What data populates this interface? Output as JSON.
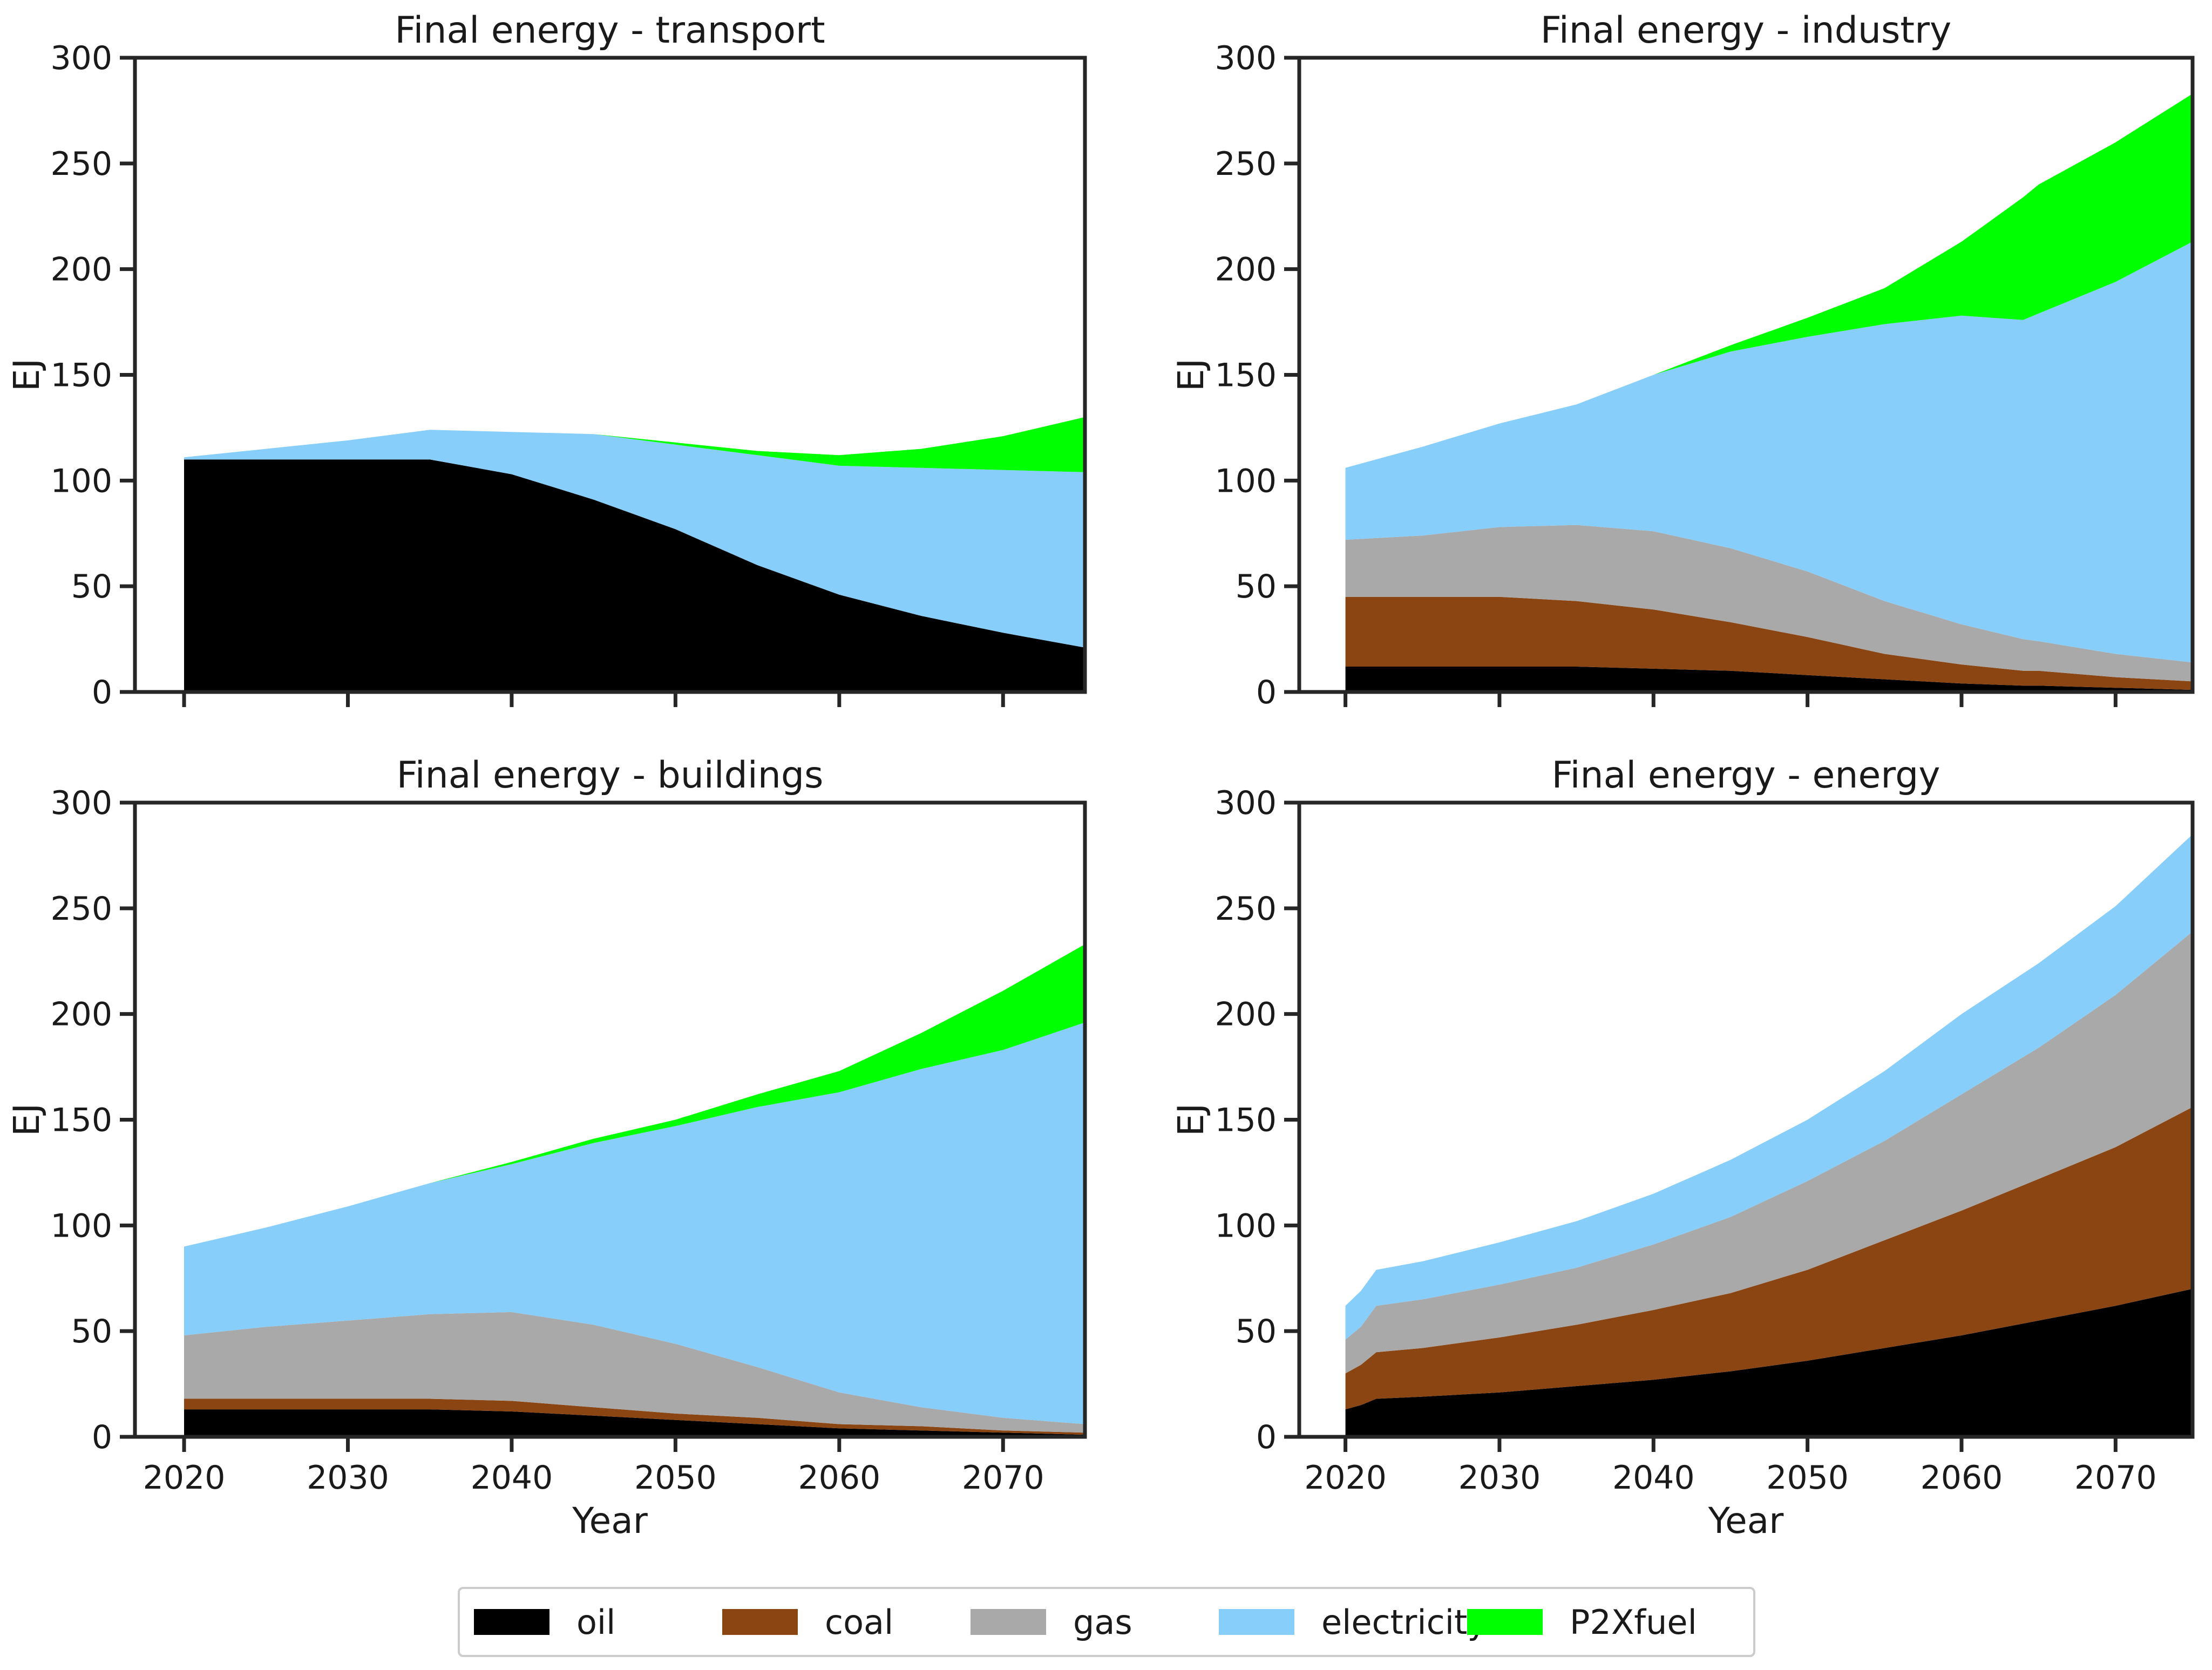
{
  "figure": {
    "legend": {
      "placement": "bottom-center",
      "entries": [
        {
          "key": "oil",
          "label": "oil",
          "color": "#000000"
        },
        {
          "key": "coal",
          "label": "coal",
          "color": "#8B4513"
        },
        {
          "key": "gas",
          "label": "gas",
          "color": "#A9A9A9"
        },
        {
          "key": "electricity",
          "label": "electricity",
          "color": "#87CEFA"
        },
        {
          "key": "P2Xfuel",
          "label": "P2Xfuel",
          "color": "#00FF00"
        }
      ]
    }
  },
  "chart_data": [
    {
      "type": "area",
      "stacked": true,
      "title": "Final energy - transport",
      "xlabel": "",
      "ylabel": "EJ",
      "xlim": [
        2017,
        2075
      ],
      "ylim": [
        0,
        300
      ],
      "xticks": [
        2020,
        2030,
        2040,
        2050,
        2060,
        2070
      ],
      "yticks": [
        0,
        50,
        100,
        150,
        200,
        250,
        300
      ],
      "show_xticklabels": false,
      "x": [
        2020,
        2025,
        2030,
        2035,
        2040,
        2045,
        2050,
        2055,
        2060,
        2065,
        2070,
        2075
      ],
      "series": [
        {
          "name": "oil",
          "values": [
            110,
            110,
            110,
            110,
            103,
            91,
            77,
            60,
            46,
            36,
            28,
            21
          ]
        },
        {
          "name": "coal",
          "values": [
            0,
            0,
            0,
            0,
            0,
            0,
            0,
            0,
            0,
            0,
            0,
            0
          ]
        },
        {
          "name": "gas",
          "values": [
            0,
            0,
            0,
            0,
            0,
            0,
            0,
            0,
            0,
            0,
            0,
            0
          ]
        },
        {
          "name": "electricity",
          "values": [
            1,
            5,
            9,
            14,
            20,
            31,
            40,
            52,
            61,
            70,
            77,
            83
          ]
        },
        {
          "name": "P2Xfuel",
          "values": [
            0,
            0,
            0,
            0,
            0,
            0,
            1,
            2,
            5,
            9,
            16,
            26
          ]
        }
      ]
    },
    {
      "type": "area",
      "stacked": true,
      "title": "Final energy - industry",
      "xlabel": "",
      "ylabel": "EJ",
      "xlim": [
        2017,
        2075
      ],
      "ylim": [
        0,
        300
      ],
      "xticks": [
        2020,
        2030,
        2040,
        2050,
        2060,
        2070
      ],
      "yticks": [
        0,
        50,
        100,
        150,
        200,
        250,
        300
      ],
      "show_xticklabels": false,
      "x": [
        2020,
        2025,
        2030,
        2035,
        2040,
        2045,
        2050,
        2055,
        2060,
        2064,
        2065,
        2070,
        2075
      ],
      "series": [
        {
          "name": "oil",
          "values": [
            12,
            12,
            12,
            12,
            11,
            10,
            8,
            6,
            4,
            3,
            3,
            2,
            1
          ]
        },
        {
          "name": "coal",
          "values": [
            33,
            33,
            33,
            31,
            28,
            23,
            18,
            12,
            9,
            7,
            7,
            5,
            4
          ]
        },
        {
          "name": "gas",
          "values": [
            27,
            29,
            33,
            36,
            37,
            35,
            31,
            25,
            19,
            15,
            14,
            11,
            9
          ]
        },
        {
          "name": "electricity",
          "values": [
            34,
            42,
            49,
            57,
            74,
            93,
            111,
            131,
            146,
            151,
            155,
            176,
            199
          ]
        },
        {
          "name": "P2Xfuel",
          "values": [
            0,
            0,
            0,
            0,
            0,
            3,
            9,
            17,
            35,
            58,
            61,
            66,
            70
          ]
        }
      ]
    },
    {
      "type": "area",
      "stacked": true,
      "title": "Final energy - buildings",
      "xlabel": "Year",
      "ylabel": "EJ",
      "xlim": [
        2017,
        2075
      ],
      "ylim": [
        0,
        300
      ],
      "xticks": [
        2020,
        2030,
        2040,
        2050,
        2060,
        2070
      ],
      "yticks": [
        0,
        50,
        100,
        150,
        200,
        250,
        300
      ],
      "show_xticklabels": true,
      "x": [
        2020,
        2025,
        2030,
        2035,
        2040,
        2045,
        2050,
        2055,
        2060,
        2065,
        2070,
        2075
      ],
      "series": [
        {
          "name": "oil",
          "values": [
            13,
            13,
            13,
            13,
            12,
            10,
            8,
            6,
            4,
            3,
            2,
            1
          ]
        },
        {
          "name": "coal",
          "values": [
            5,
            5,
            5,
            5,
            5,
            4,
            3,
            3,
            2,
            2,
            1,
            1
          ]
        },
        {
          "name": "gas",
          "values": [
            30,
            34,
            37,
            40,
            42,
            39,
            33,
            24,
            15,
            9,
            6,
            4
          ]
        },
        {
          "name": "electricity",
          "values": [
            42,
            47,
            54,
            62,
            70,
            86,
            103,
            123,
            142,
            160,
            174,
            190
          ]
        },
        {
          "name": "P2Xfuel",
          "values": [
            0,
            0,
            0,
            0,
            1,
            2,
            3,
            6,
            10,
            17,
            28,
            37
          ]
        }
      ]
    },
    {
      "type": "area",
      "stacked": true,
      "title": "Final energy - energy",
      "xlabel": "Year",
      "ylabel": "EJ",
      "xlim": [
        2017,
        2075
      ],
      "ylim": [
        0,
        300
      ],
      "xticks": [
        2020,
        2030,
        2040,
        2050,
        2060,
        2070
      ],
      "yticks": [
        0,
        50,
        100,
        150,
        200,
        250,
        300
      ],
      "show_xticklabels": true,
      "x": [
        2020,
        2021,
        2022,
        2025,
        2030,
        2035,
        2040,
        2045,
        2050,
        2055,
        2060,
        2065,
        2070,
        2075
      ],
      "series": [
        {
          "name": "oil",
          "values": [
            13,
            15,
            18,
            19,
            21,
            24,
            27,
            31,
            36,
            42,
            48,
            55,
            62,
            70
          ]
        },
        {
          "name": "coal",
          "values": [
            17,
            19,
            22,
            23,
            26,
            29,
            33,
            37,
            43,
            51,
            59,
            67,
            75,
            86
          ]
        },
        {
          "name": "gas",
          "values": [
            16,
            18,
            22,
            23,
            25,
            27,
            31,
            36,
            42,
            47,
            55,
            62,
            72,
            83
          ]
        },
        {
          "name": "electricity",
          "values": [
            16,
            17,
            17,
            18,
            20,
            22,
            24,
            27,
            29,
            33,
            38,
            40,
            42,
            46
          ]
        },
        {
          "name": "P2Xfuel",
          "values": [
            0,
            0,
            0,
            0,
            0,
            0,
            0,
            0,
            0,
            0,
            0,
            0,
            0,
            0
          ]
        }
      ]
    }
  ]
}
